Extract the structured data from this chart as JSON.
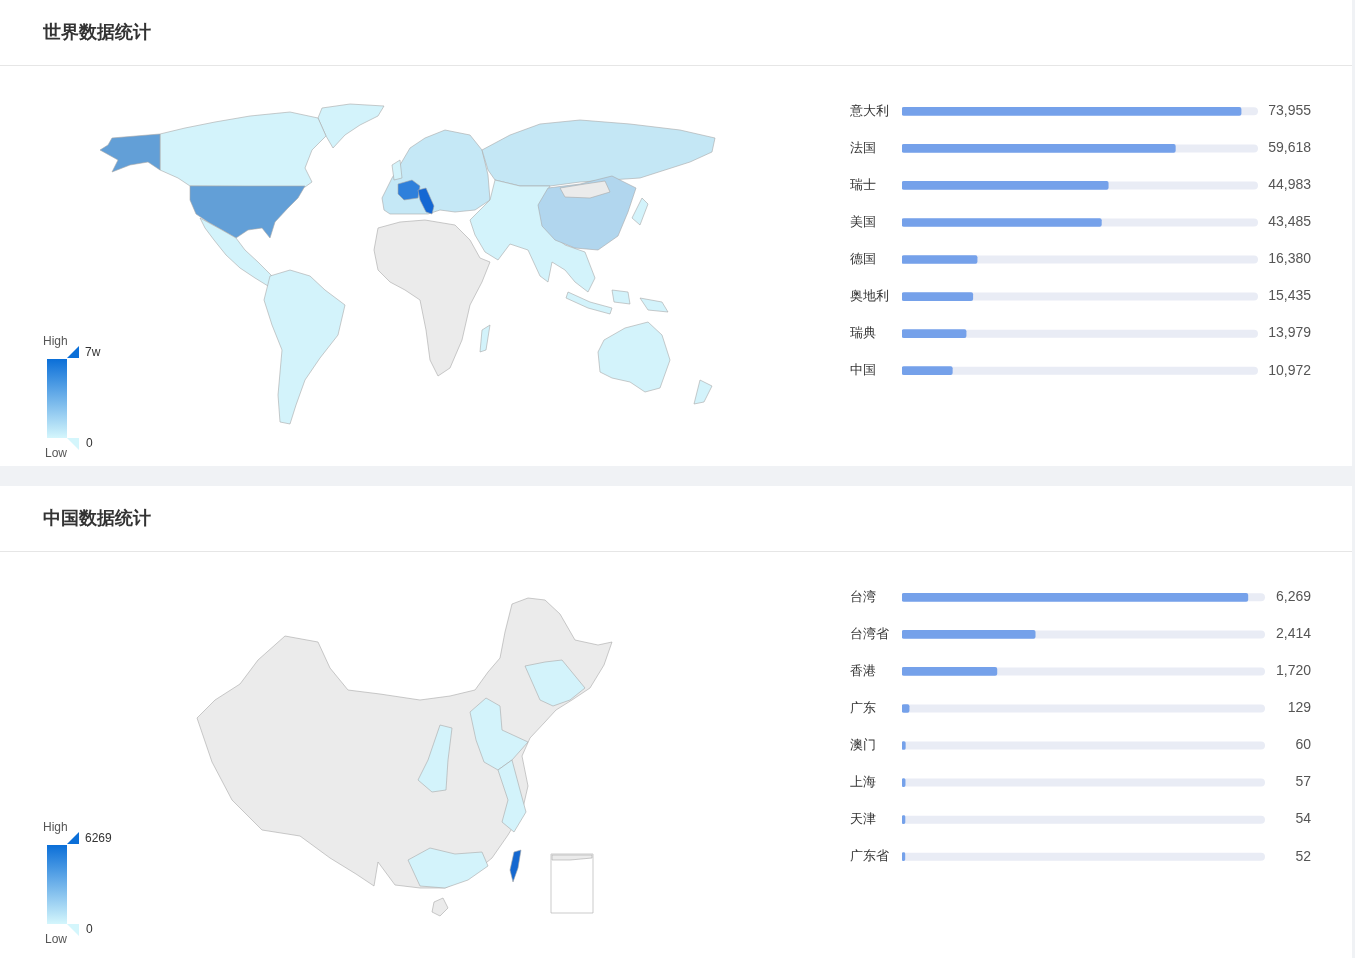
{
  "chart_data": [
    {
      "type": "other",
      "title": "世界数据统计",
      "annotations": [
        "High",
        "7w",
        "0",
        "Low"
      ]
    },
    {
      "type": "bar",
      "orientation": "horizontal",
      "categories": [
        "意大利",
        "法国",
        "瑞士",
        "美国",
        "德国",
        "奥地利",
        "瑞典",
        "中国"
      ],
      "values": [
        73955,
        59618,
        44983,
        43485,
        16380,
        15435,
        13979,
        10972
      ],
      "value_labels": [
        "73,955",
        "59,618",
        "44,983",
        "43,485",
        "16,380",
        "15,435",
        "13,979",
        "10,972"
      ],
      "color": "#75a1ea",
      "xlim": [
        0,
        77650
      ],
      "tick_labels": "y"
    },
    {
      "type": "other",
      "title": "中国数据统计",
      "annotations": [
        "High",
        "6269",
        "0",
        "Low"
      ]
    },
    {
      "type": "bar",
      "orientation": "horizontal",
      "categories": [
        "台湾",
        "台湾省",
        "香港",
        "广东",
        "澳门",
        "上海",
        "天津",
        "广东省"
      ],
      "values": [
        6269,
        2414,
        1720,
        129,
        60,
        57,
        54,
        52
      ],
      "value_labels": [
        "6,269",
        "2,414",
        "1,720",
        "129",
        "60",
        "57",
        "54",
        "52"
      ],
      "color": "#75a1ea",
      "xlim": [
        0,
        6580
      ],
      "tick_labels": "y"
    }
  ]
}
